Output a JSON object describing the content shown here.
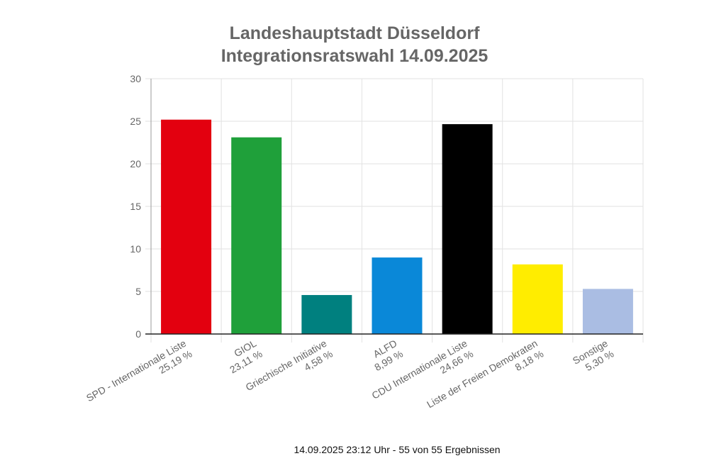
{
  "chart_data": {
    "type": "bar",
    "title": [
      "Landeshauptstadt Düsseldorf",
      "Integrationsratswahl 14.09.2025"
    ],
    "categories": [
      "SPD - Internationale Liste",
      "GIOL",
      "Griechische Initiative",
      "ALFD",
      "CDU Internationale Liste",
      "Liste der Freien Demokraten",
      "Sonstige"
    ],
    "value_labels": [
      "25,19 %",
      "23,11 %",
      "4,58 %",
      "8,99 %",
      "24,66 %",
      "8,18 %",
      "5,30 %"
    ],
    "values": [
      25.19,
      23.11,
      4.58,
      8.99,
      24.66,
      8.18,
      5.3
    ],
    "colors": [
      "#e3000f",
      "#1fa03a",
      "#00807f",
      "#0a88d8",
      "#000000",
      "#ffed00",
      "#aabde3"
    ],
    "ylim": [
      0,
      30
    ],
    "yticks": [
      "0",
      "5",
      "10",
      "15",
      "20",
      "25",
      "30"
    ],
    "grid": true,
    "legend": "none"
  },
  "footer": "14.09.2025 23:12 Uhr - 55 von 55 Ergebnissen"
}
